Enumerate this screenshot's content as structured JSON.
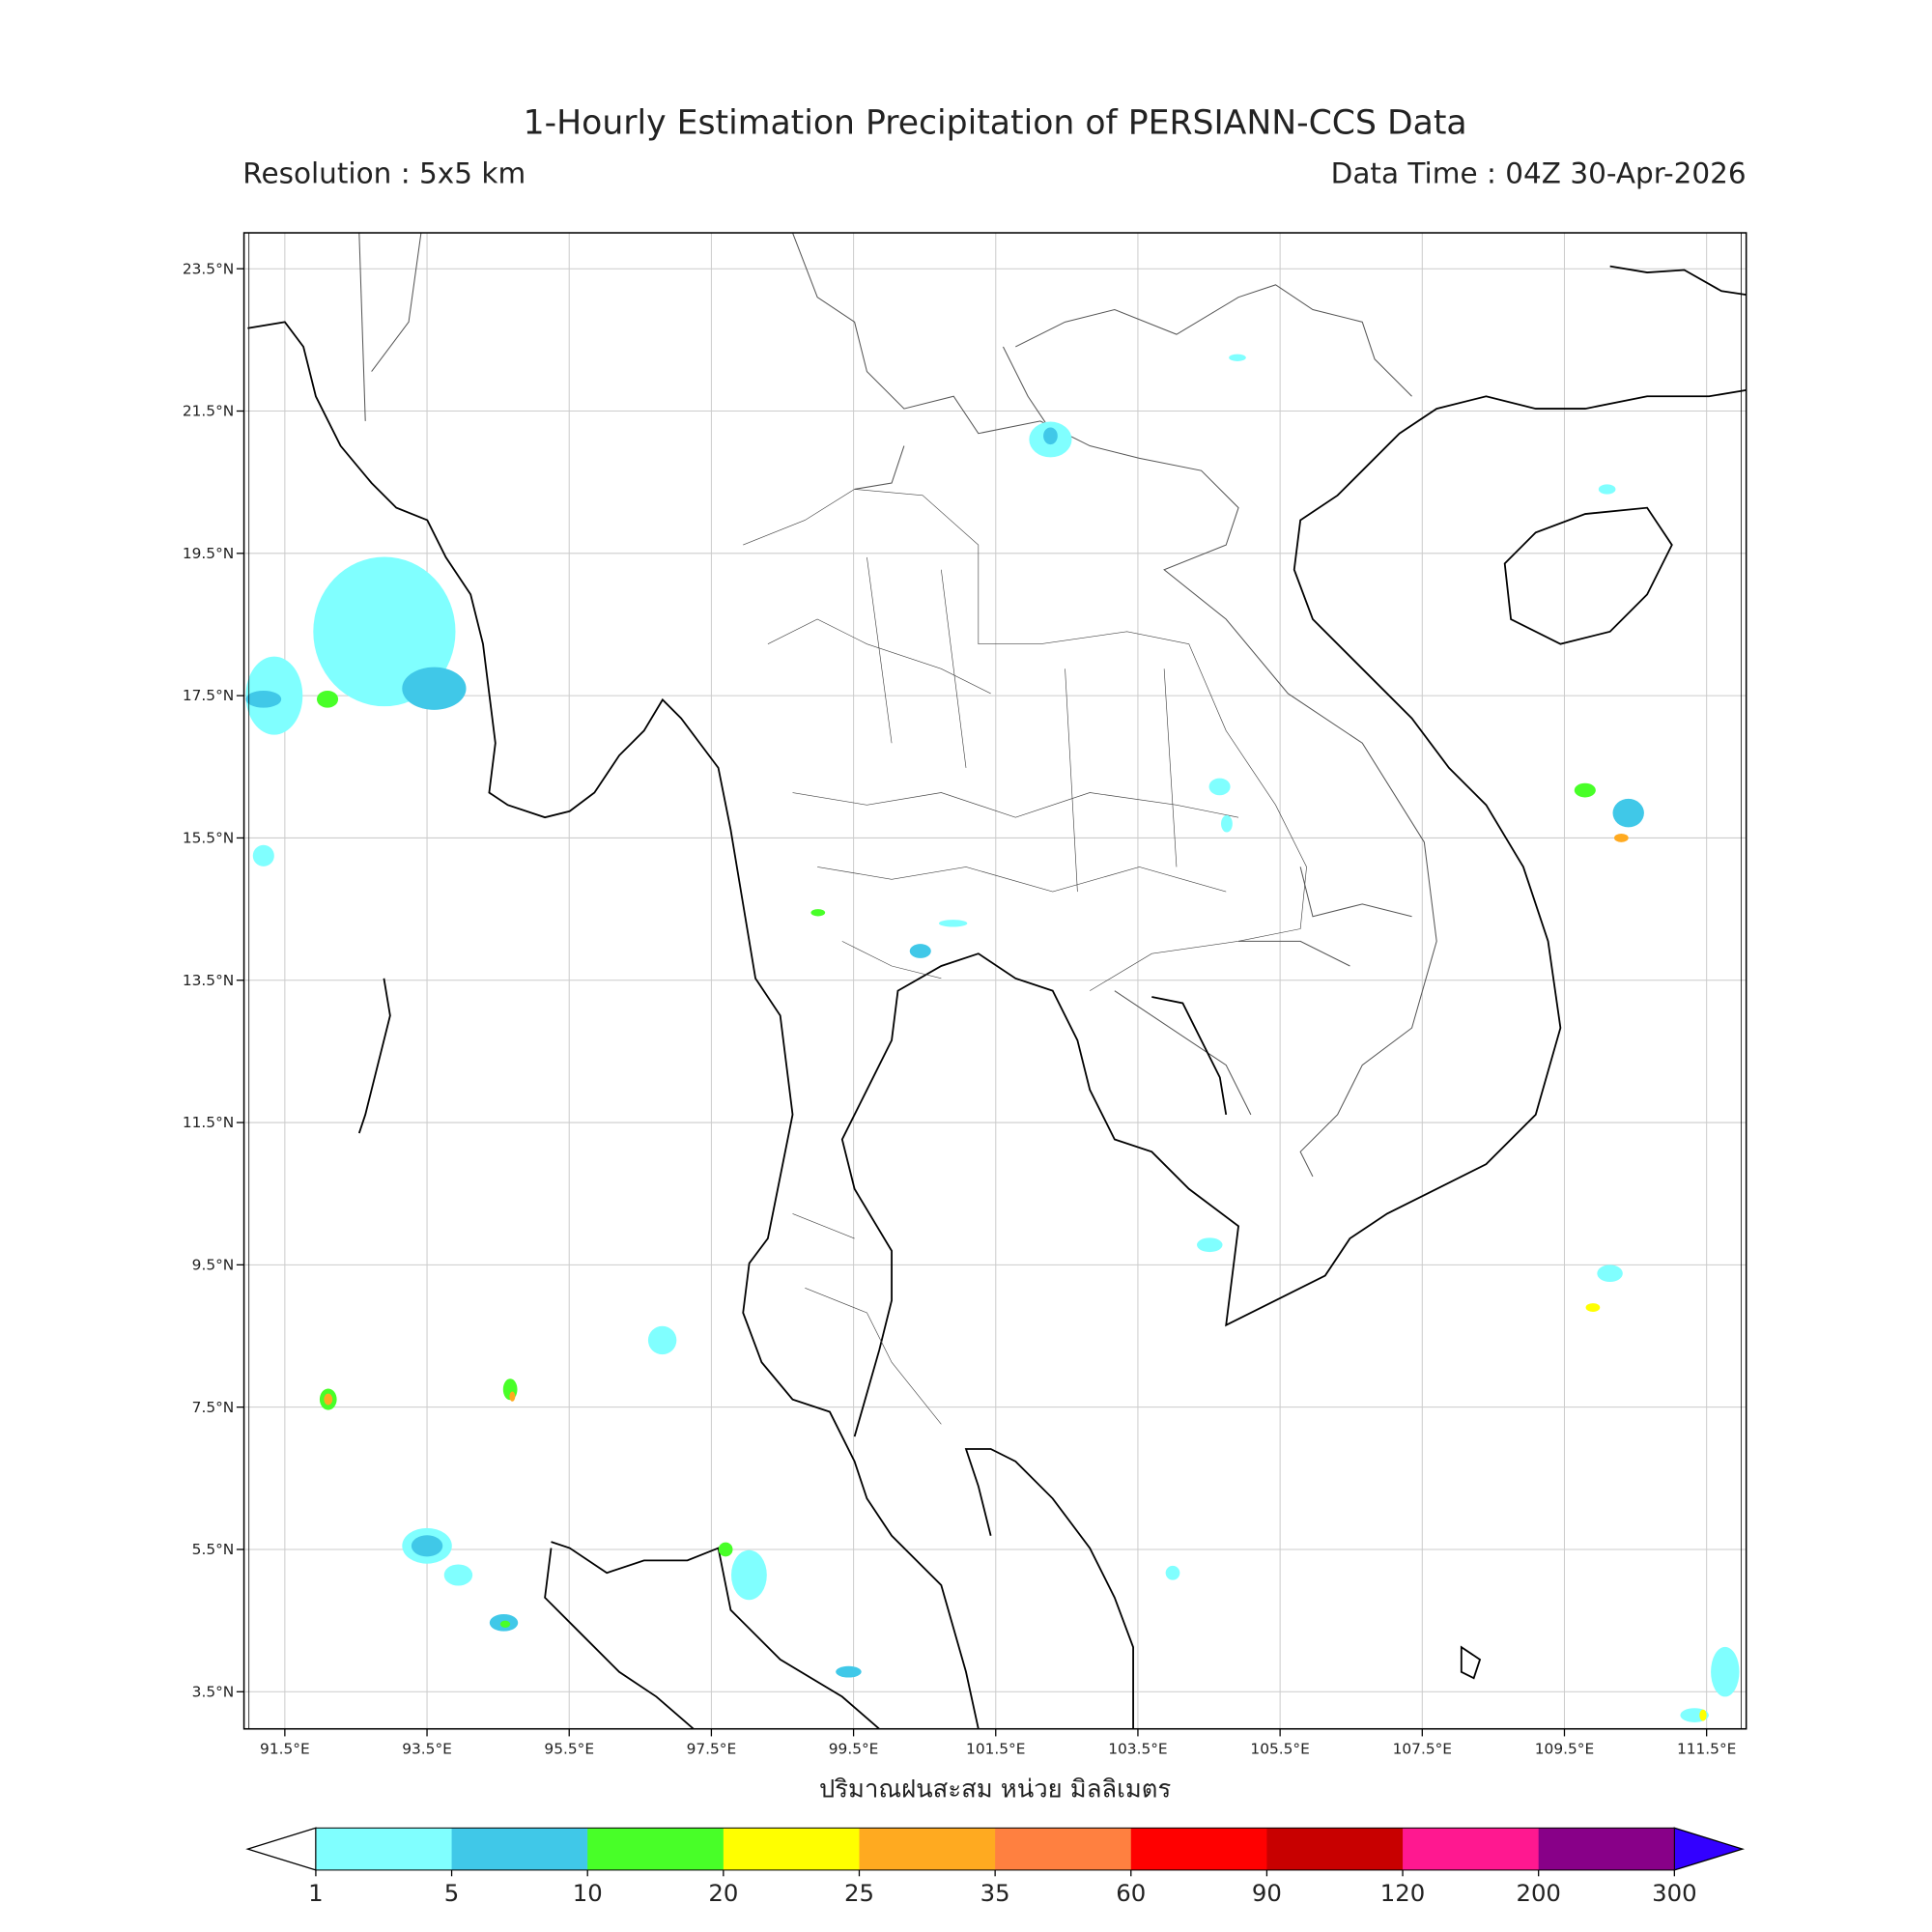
{
  "title": "1-Hourly Estimation Precipitation of PERSIANN-CCS Data",
  "resolution": "Resolution : 5x5 km",
  "data_time": "Data Time : 04Z 30-Apr-2026",
  "xlabel": "ปริมาณฝนสะสม หน่วย มิลลิเมตร",
  "map": {
    "lon_range": [
      90.9,
      112.0
    ],
    "lat_range": [
      2.95,
      24.0
    ],
    "grid": true,
    "lon_ticks": [
      "91.5°E",
      "93.5°E",
      "95.5°E",
      "97.5°E",
      "99.5°E",
      "101.5°E",
      "103.5°E",
      "105.5°E",
      "107.5°E",
      "109.5°E",
      "111.5°E"
    ],
    "lat_ticks": [
      "23.5°N",
      "21.5°N",
      "19.5°N",
      "17.5°N",
      "15.5°N",
      "13.5°N",
      "11.5°N",
      "9.5°N",
      "7.5°N",
      "5.5°N",
      "3.5°N"
    ],
    "precip_cells": [
      {
        "lon": 92.9,
        "lat": 18.4,
        "rx": 1.0,
        "ry": 1.05,
        "level": 0
      },
      {
        "lon": 93.6,
        "lat": 17.6,
        "rx": 0.45,
        "ry": 0.3,
        "level": 1
      },
      {
        "lon": 92.1,
        "lat": 17.45,
        "rx": 0.15,
        "ry": 0.12,
        "level": 2
      },
      {
        "lon": 91.35,
        "lat": 17.5,
        "rx": 0.4,
        "ry": 0.55,
        "level": 0
      },
      {
        "lon": 91.2,
        "lat": 17.45,
        "rx": 0.25,
        "ry": 0.12,
        "level": 1
      },
      {
        "lon": 91.2,
        "lat": 15.25,
        "rx": 0.15,
        "ry": 0.15,
        "level": 0
      },
      {
        "lon": 102.27,
        "lat": 21.1,
        "rx": 0.3,
        "ry": 0.25,
        "level": 0
      },
      {
        "lon": 102.27,
        "lat": 21.15,
        "rx": 0.1,
        "ry": 0.12,
        "level": 1
      },
      {
        "lon": 100.44,
        "lat": 13.91,
        "rx": 0.15,
        "ry": 0.1,
        "level": 1
      },
      {
        "lon": 93.5,
        "lat": 5.55,
        "rx": 0.35,
        "ry": 0.25,
        "level": 0
      },
      {
        "lon": 93.5,
        "lat": 5.55,
        "rx": 0.22,
        "ry": 0.15,
        "level": 1
      },
      {
        "lon": 93.94,
        "lat": 5.14,
        "rx": 0.2,
        "ry": 0.15,
        "level": 0
      },
      {
        "lon": 94.58,
        "lat": 4.47,
        "rx": 0.2,
        "ry": 0.12,
        "level": 1
      },
      {
        "lon": 94.6,
        "lat": 4.45,
        "rx": 0.07,
        "ry": 0.05,
        "level": 2
      },
      {
        "lon": 92.11,
        "lat": 7.61,
        "rx": 0.12,
        "ry": 0.15,
        "level": 2
      },
      {
        "lon": 92.11,
        "lat": 7.61,
        "rx": 0.06,
        "ry": 0.08,
        "level": 4
      },
      {
        "lon": 94.67,
        "lat": 7.75,
        "rx": 0.1,
        "ry": 0.15,
        "level": 2
      },
      {
        "lon": 94.7,
        "lat": 7.65,
        "rx": 0.04,
        "ry": 0.07,
        "level": 4
      },
      {
        "lon": 96.81,
        "lat": 8.44,
        "rx": 0.2,
        "ry": 0.2,
        "level": 0
      },
      {
        "lon": 98.03,
        "lat": 5.14,
        "rx": 0.25,
        "ry": 0.35,
        "level": 0
      },
      {
        "lon": 97.7,
        "lat": 5.5,
        "rx": 0.1,
        "ry": 0.1,
        "level": 2
      },
      {
        "lon": 99.43,
        "lat": 3.78,
        "rx": 0.18,
        "ry": 0.08,
        "level": 1
      },
      {
        "lon": 103.99,
        "lat": 5.17,
        "rx": 0.1,
        "ry": 0.1,
        "level": 0
      },
      {
        "lon": 104.51,
        "lat": 9.78,
        "rx": 0.18,
        "ry": 0.1,
        "level": 0
      },
      {
        "lon": 104.65,
        "lat": 16.22,
        "rx": 0.15,
        "ry": 0.12,
        "level": 0
      },
      {
        "lon": 104.75,
        "lat": 15.7,
        "rx": 0.08,
        "ry": 0.12,
        "level": 0
      },
      {
        "lon": 109.79,
        "lat": 16.17,
        "rx": 0.15,
        "ry": 0.1,
        "level": 2
      },
      {
        "lon": 110.4,
        "lat": 15.85,
        "rx": 0.22,
        "ry": 0.2,
        "level": 1
      },
      {
        "lon": 110.3,
        "lat": 15.5,
        "rx": 0.1,
        "ry": 0.06,
        "level": 4
      },
      {
        "lon": 110.14,
        "lat": 9.38,
        "rx": 0.18,
        "ry": 0.12,
        "level": 0
      },
      {
        "lon": 109.9,
        "lat": 8.9,
        "rx": 0.1,
        "ry": 0.06,
        "level": 3
      },
      {
        "lon": 111.76,
        "lat": 3.78,
        "rx": 0.2,
        "ry": 0.35,
        "level": 0
      },
      {
        "lon": 111.33,
        "lat": 3.17,
        "rx": 0.2,
        "ry": 0.1,
        "level": 0
      },
      {
        "lon": 111.45,
        "lat": 3.17,
        "rx": 0.05,
        "ry": 0.08,
        "level": 3
      },
      {
        "lon": 100.9,
        "lat": 14.3,
        "rx": 0.2,
        "ry": 0.05,
        "level": 0
      },
      {
        "lon": 99.0,
        "lat": 14.45,
        "rx": 0.1,
        "ry": 0.05,
        "level": 2
      },
      {
        "lon": 104.9,
        "lat": 22.25,
        "rx": 0.12,
        "ry": 0.05,
        "level": 0
      },
      {
        "lon": 110.1,
        "lat": 20.4,
        "rx": 0.12,
        "ry": 0.07,
        "level": 0
      }
    ]
  },
  "colorbar": {
    "labels": [
      "1",
      "5",
      "10",
      "20",
      "25",
      "35",
      "60",
      "90",
      "120",
      "200",
      "300"
    ],
    "colors": [
      "#80ffff",
      "#40c8e8",
      "#48ff28",
      "#ffff00",
      "#ffaa20",
      "#ff8040",
      "#ff0000",
      "#c80000",
      "#ff1890",
      "#880088"
    ],
    "under_color": "#ffffff",
    "over_color": "#3300ff"
  }
}
